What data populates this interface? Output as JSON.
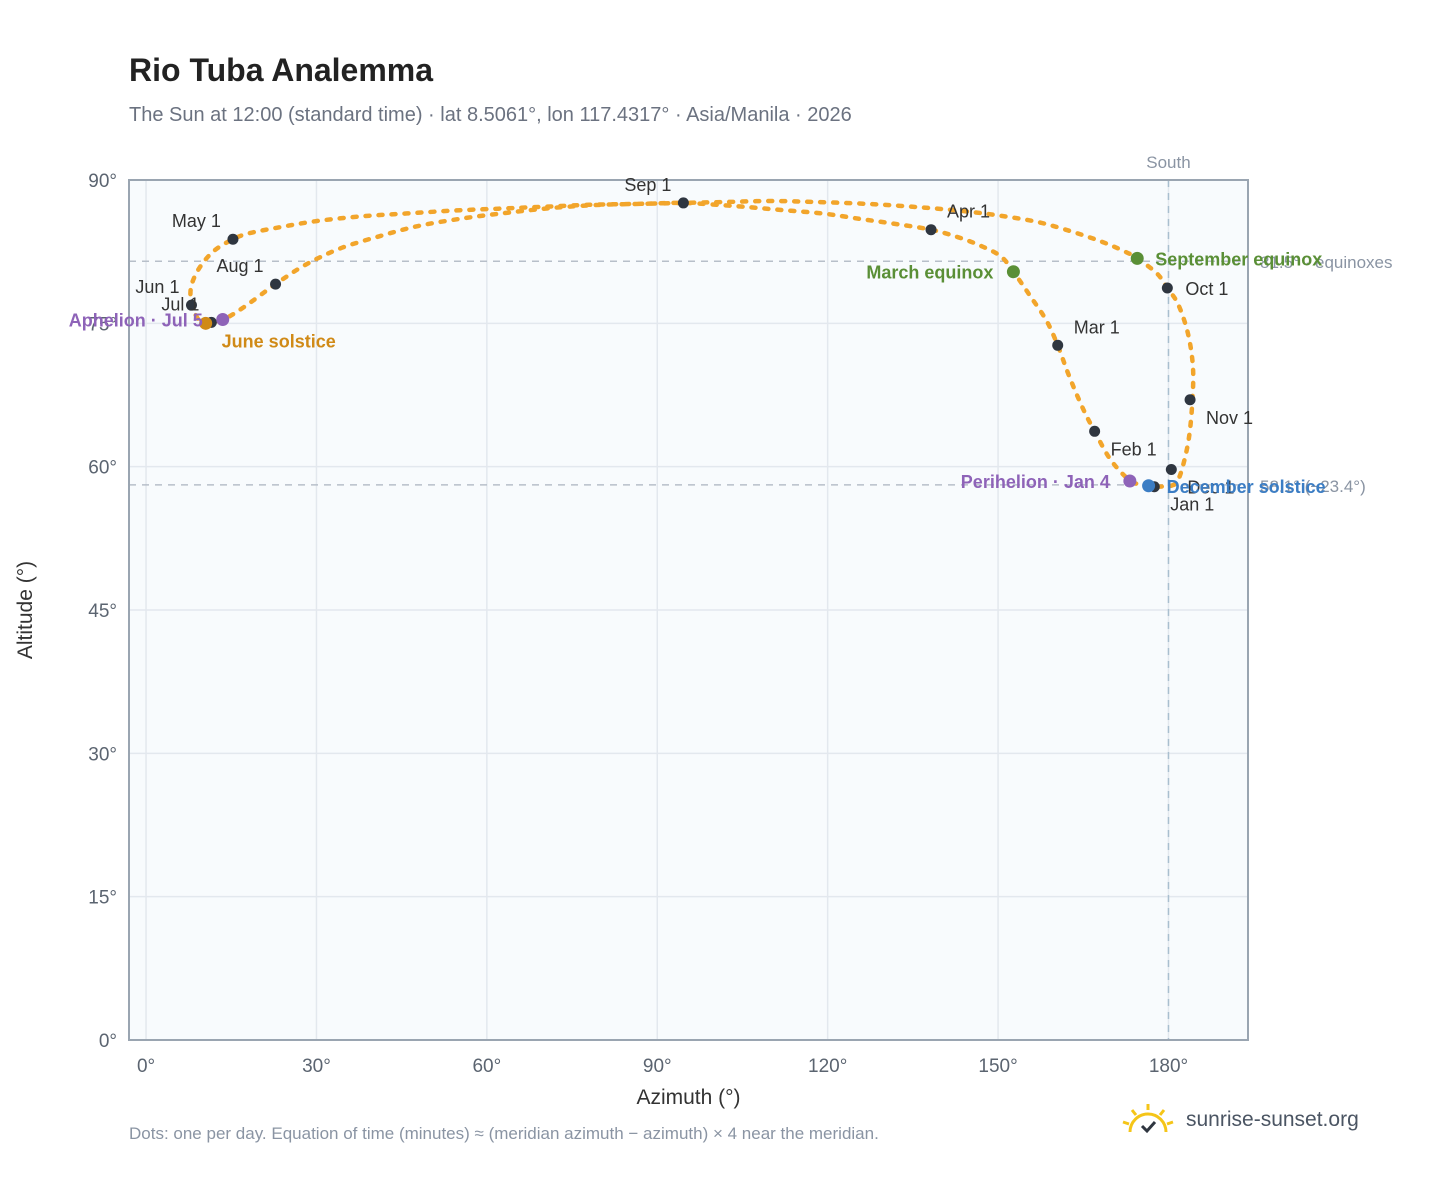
{
  "header": {
    "title": "Rio Tuba Analemma",
    "subtitle": "The Sun at 12:00 (standard time) · lat 8.5061°, lon 117.4317° · Asia/Manila · 2026"
  },
  "footer": {
    "note": "Dots: one per day. Equation of time (minutes) ≈ (meridian azimuth − azimuth) × 4 near the meridian.",
    "brand": "sunrise-sunset.org"
  },
  "colors": {
    "curve": "#f2a52b",
    "month_marker": "#2f3640",
    "equinox": "#5a8f36",
    "june_solstice": "#d08a17",
    "december_solstice": "#3b7dc4",
    "apsis": "#8e63b8",
    "grid": "#e3e8ee",
    "plot_bg": "#f8fbfd",
    "frame": "#9aa5b1",
    "reference": "#b7bfc9"
  },
  "chart_data": {
    "type": "scatter",
    "title": "Rio Tuba Analemma",
    "xlabel": "Azimuth (°)",
    "ylabel": "Altitude (°)",
    "xlim": [
      -3,
      194
    ],
    "ylim": [
      0,
      90
    ],
    "x_ticks": [
      "0°",
      "30°",
      "60°",
      "90°",
      "120°",
      "150°",
      "180°"
    ],
    "y_ticks": [
      "0°",
      "15°",
      "30°",
      "45°",
      "60°",
      "75°",
      "90°"
    ],
    "grid": true,
    "reference_lines": {
      "south_label": "South",
      "south_azimuth": 180,
      "equinox_altitude": 81.5,
      "equinox_label": "81.5° · equinoxes",
      "december_altitude": 58.1,
      "december_label": "58.1° (−23.4°)"
    },
    "path_points": [
      {
        "az": 180.5,
        "alt": 58.0
      },
      {
        "az": 181.5,
        "alt": 58.4
      },
      {
        "az": 182.5,
        "alt": 60.0
      },
      {
        "az": 183.6,
        "alt": 63.0
      },
      {
        "az": 184.2,
        "alt": 66.8
      },
      {
        "az": 184.3,
        "alt": 70.5
      },
      {
        "az": 183.4,
        "alt": 74.0
      },
      {
        "az": 181.7,
        "alt": 77.0
      },
      {
        "az": 179.8,
        "alt": 78.7
      },
      {
        "az": 178.0,
        "alt": 80.2
      },
      {
        "az": 174.5,
        "alt": 81.8
      },
      {
        "az": 172.0,
        "alt": 82.6
      },
      {
        "az": 168.0,
        "alt": 83.6
      },
      {
        "az": 163.0,
        "alt": 84.6
      },
      {
        "az": 157.0,
        "alt": 85.6
      },
      {
        "az": 150.0,
        "alt": 86.3
      },
      {
        "az": 143.0,
        "alt": 86.8
      },
      {
        "az": 135.0,
        "alt": 87.2
      },
      {
        "az": 127.0,
        "alt": 87.5
      },
      {
        "az": 118.0,
        "alt": 87.7
      },
      {
        "az": 110.0,
        "alt": 87.8
      },
      {
        "az": 102.0,
        "alt": 87.7
      },
      {
        "az": 94.6,
        "alt": 87.6
      },
      {
        "az": 86.0,
        "alt": 87.5
      },
      {
        "az": 78.0,
        "alt": 87.4
      },
      {
        "az": 70.0,
        "alt": 87.2
      },
      {
        "az": 62.0,
        "alt": 87.0
      },
      {
        "az": 54.0,
        "alt": 86.8
      },
      {
        "az": 46.0,
        "alt": 86.5
      },
      {
        "az": 38.0,
        "alt": 86.2
      },
      {
        "az": 30.0,
        "alt": 85.7
      },
      {
        "az": 23.0,
        "alt": 85.0
      },
      {
        "az": 18.0,
        "alt": 84.4
      },
      {
        "az": 15.3,
        "alt": 83.8
      },
      {
        "az": 12.0,
        "alt": 82.6
      },
      {
        "az": 9.5,
        "alt": 80.9
      },
      {
        "az": 8.0,
        "alt": 79.0
      },
      {
        "az": 7.9,
        "alt": 77.3
      },
      {
        "az": 8.6,
        "alt": 76.0
      },
      {
        "az": 10.2,
        "alt": 75.0
      },
      {
        "az": 13.5,
        "alt": 75.4
      },
      {
        "az": 17.0,
        "alt": 76.6
      },
      {
        "az": 22.8,
        "alt": 79.1
      },
      {
        "az": 28.0,
        "alt": 81.1
      },
      {
        "az": 34.0,
        "alt": 82.8
      },
      {
        "az": 41.0,
        "alt": 84.1
      },
      {
        "az": 48.0,
        "alt": 85.2
      },
      {
        "az": 56.0,
        "alt": 86.0
      },
      {
        "az": 64.0,
        "alt": 86.6
      },
      {
        "az": 72.0,
        "alt": 87.1
      },
      {
        "az": 80.0,
        "alt": 87.4
      },
      {
        "az": 87.0,
        "alt": 87.5
      },
      {
        "az": 94.6,
        "alt": 87.6
      },
      {
        "az": 103.0,
        "alt": 87.3
      },
      {
        "az": 111.0,
        "alt": 86.9
      },
      {
        "az": 119.0,
        "alt": 86.5
      },
      {
        "az": 126.0,
        "alt": 85.9
      },
      {
        "az": 132.0,
        "alt": 85.4
      },
      {
        "az": 138.2,
        "alt": 84.8
      },
      {
        "az": 143.0,
        "alt": 84.0
      },
      {
        "az": 147.0,
        "alt": 83.1
      },
      {
        "az": 150.5,
        "alt": 82.0
      },
      {
        "az": 152.7,
        "alt": 80.4
      },
      {
        "az": 155.5,
        "alt": 78.0
      },
      {
        "az": 158.5,
        "alt": 75.3
      },
      {
        "az": 160.5,
        "alt": 72.7
      },
      {
        "az": 162.5,
        "alt": 69.5
      },
      {
        "az": 165.0,
        "alt": 66.0
      },
      {
        "az": 167.0,
        "alt": 63.7
      },
      {
        "az": 169.5,
        "alt": 61.0
      },
      {
        "az": 172.0,
        "alt": 59.2
      },
      {
        "az": 174.0,
        "alt": 58.3
      },
      {
        "az": 177.0,
        "alt": 57.9
      },
      {
        "az": 180.5,
        "alt": 58.0
      }
    ],
    "month_markers": [
      {
        "label": "Jan 1",
        "az": 177.5,
        "alt": 57.9,
        "pos": "below-right"
      },
      {
        "label": "Feb 1",
        "az": 167.0,
        "alt": 63.7,
        "pos": "below-right"
      },
      {
        "label": "Mar 1",
        "az": 160.5,
        "alt": 72.7,
        "pos": "upper-right"
      },
      {
        "label": "Apr 1",
        "az": 138.2,
        "alt": 84.8,
        "pos": "upper-right"
      },
      {
        "label": "May 1",
        "az": 15.3,
        "alt": 83.8,
        "pos": "upper-left"
      },
      {
        "label": "Jun 1",
        "az": 8.0,
        "alt": 76.9,
        "pos": "upper-left"
      },
      {
        "label": "Jul 1",
        "az": 11.5,
        "alt": 75.1,
        "pos": "upper-left"
      },
      {
        "label": "Aug 1",
        "az": 22.8,
        "alt": 79.1,
        "pos": "upper-left"
      },
      {
        "label": "Sep 1",
        "az": 94.6,
        "alt": 87.6,
        "pos": "upper-left"
      },
      {
        "label": "Oct 1",
        "az": 179.8,
        "alt": 78.7,
        "pos": "right"
      },
      {
        "label": "Nov 1",
        "az": 183.8,
        "alt": 67.0,
        "pos": "below-right"
      },
      {
        "label": "Dec 1",
        "az": 180.5,
        "alt": 59.7,
        "pos": "below-right"
      }
    ],
    "events": [
      {
        "label": "March equinox",
        "az": 152.7,
        "alt": 80.4,
        "kind": "equinox",
        "pos": "left"
      },
      {
        "label": "September equinox",
        "az": 174.5,
        "alt": 81.8,
        "kind": "equinox",
        "pos": "right"
      },
      {
        "label": "June solstice",
        "az": 10.5,
        "alt": 75.0,
        "kind": "june",
        "pos": "below-right"
      },
      {
        "label": "December solstice",
        "az": 176.5,
        "alt": 58.0,
        "kind": "december",
        "pos": "right"
      },
      {
        "label": "Aphelion · Jul 5",
        "az": 13.5,
        "alt": 75.4,
        "kind": "apsis",
        "pos": "left"
      },
      {
        "label": "Perihelion · Jan 4",
        "az": 173.2,
        "alt": 58.5,
        "kind": "apsis",
        "pos": "left"
      }
    ]
  }
}
